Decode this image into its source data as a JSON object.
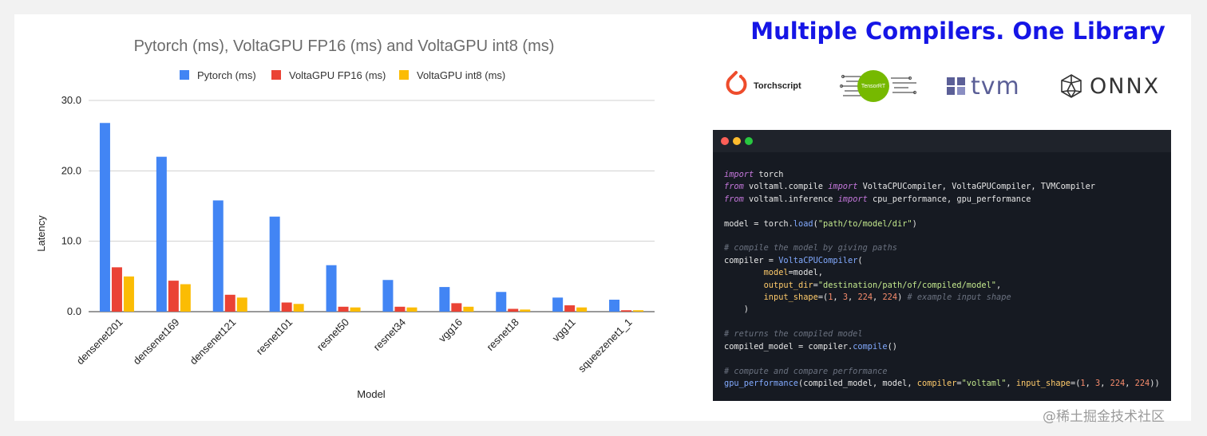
{
  "chart_data": {
    "type": "bar",
    "title": "Pytorch (ms), VoltaGPU FP16 (ms) and VoltaGPU int8 (ms)",
    "xlabel": "Model",
    "ylabel": "Latency",
    "ylim": [
      0,
      30
    ],
    "yticks": [
      "0.0",
      "10.0",
      "20.0",
      "30.0"
    ],
    "legend_position": "top",
    "categories": [
      "densenet201",
      "densenet169",
      "densenet121",
      "resnet101",
      "resnet50",
      "resnet34",
      "vgg16",
      "resnet18",
      "vgg11",
      "squeezenet1_1"
    ],
    "series": [
      {
        "name": "Pytorch (ms)",
        "color": "#4285f4",
        "values": [
          26.8,
          22.0,
          15.8,
          13.5,
          6.6,
          4.5,
          3.5,
          2.8,
          2.0,
          1.7
        ]
      },
      {
        "name": "VoltaGPU FP16 (ms)",
        "color": "#ea4335",
        "values": [
          6.3,
          4.4,
          2.4,
          1.3,
          0.7,
          0.7,
          1.2,
          0.4,
          0.9,
          0.2
        ]
      },
      {
        "name": "VoltaGPU int8 (ms)",
        "color": "#fbbc04",
        "values": [
          5.0,
          3.9,
          2.0,
          1.1,
          0.6,
          0.6,
          0.7,
          0.3,
          0.6,
          0.2
        ]
      }
    ]
  },
  "headline": "Multiple Compilers. One Library",
  "logos": {
    "torchscript": "Torchscript",
    "tensorrt": "TensorRT",
    "tvm": "tvm",
    "onnx": "ONNX"
  },
  "watermark": "@稀土掘金技术社区"
}
